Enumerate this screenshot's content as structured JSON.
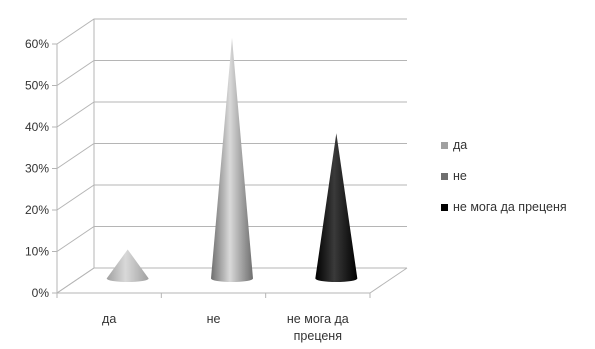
{
  "chart_data": {
    "type": "bar",
    "shape": "cone-3d",
    "title": "",
    "xlabel": "",
    "ylabel": "",
    "ylim": [
      0,
      60
    ],
    "y_tick_values": [
      0,
      10,
      20,
      30,
      40,
      50,
      60
    ],
    "y_tick_labels": [
      "0%",
      "10%",
      "20%",
      "30%",
      "40%",
      "50%",
      "60%"
    ],
    "grid": true,
    "legend_position": "right",
    "categories": [
      {
        "label_lines": [
          "да"
        ]
      },
      {
        "label_lines": [
          "не"
        ]
      },
      {
        "label_lines": [
          "не мога да",
          "преценя"
        ]
      }
    ],
    "series": [
      {
        "name": "да",
        "color": "#a0a0a0"
      },
      {
        "name": "не",
        "color": "#6e6e6e"
      },
      {
        "name": "не мога да преценя",
        "color": "#000000"
      }
    ],
    "values": [
      7,
      58,
      35
    ]
  }
}
